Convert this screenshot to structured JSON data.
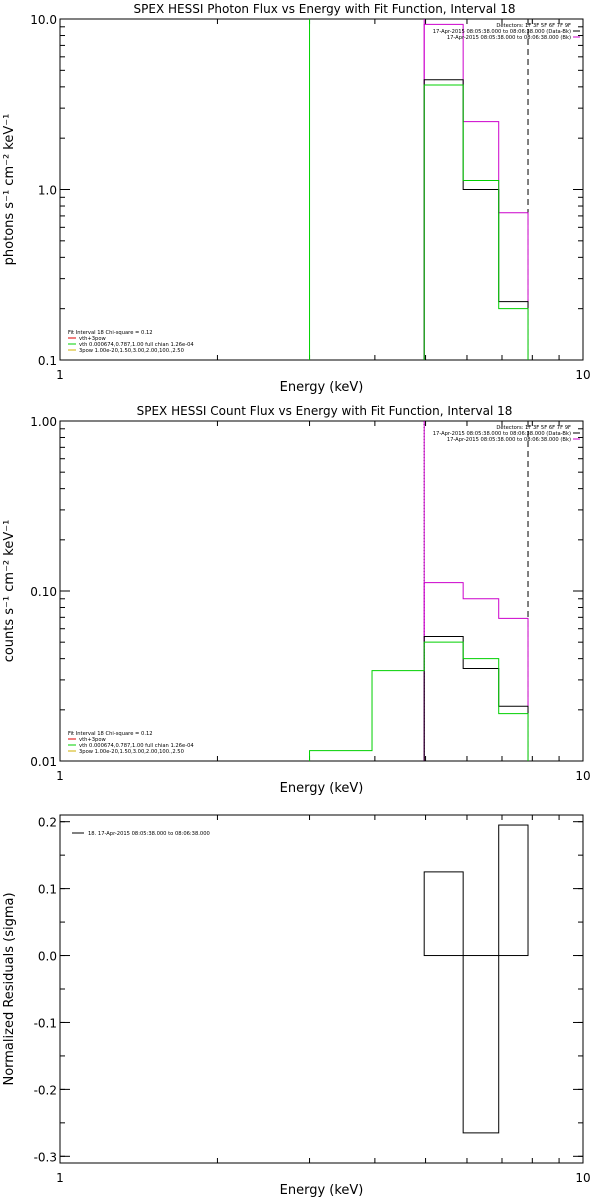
{
  "colors": {
    "black": "#000000",
    "green": "#00d000",
    "magenta": "#cc00cc",
    "red": "#e00000",
    "yellow": "#d2b000"
  },
  "chart_data": [
    {
      "type": "line",
      "title": "SPEX HESSI Photon Flux vs Energy with Fit Function, Interval 18",
      "xlabel": "Energy (keV)",
      "ylabel": "photons s⁻¹ cm⁻² keV⁻¹",
      "xscale": "log",
      "yscale": "log",
      "xlim": [
        1,
        10
      ],
      "ylim": [
        0.1,
        10
      ],
      "xticks": [
        {
          "v": 1,
          "label": "1"
        },
        {
          "v": 10,
          "label": "10"
        }
      ],
      "yticks": [
        {
          "v": 0.1,
          "label": "0.1"
        },
        {
          "v": 1,
          "label": "1.0"
        },
        {
          "v": 10,
          "label": "10.0"
        }
      ],
      "vlines": [
        {
          "x": 3.0,
          "color": "green",
          "style": "solid"
        },
        {
          "x": 4.97,
          "color": "magenta",
          "style": "solid"
        },
        {
          "x": 7.85,
          "color": "black",
          "style": "dashed"
        }
      ],
      "series": [
        {
          "color": "magenta",
          "edges": [
            4.97,
            5.9,
            6.9,
            7.85
          ],
          "values": [
            9.3,
            2.5,
            0.73
          ]
        },
        {
          "color": "black",
          "edges": [
            4.97,
            5.9,
            6.9,
            7.85
          ],
          "values": [
            4.4,
            1.0,
            0.22
          ]
        },
        {
          "color": "green",
          "edges": [
            4.97,
            5.9,
            6.9,
            7.85
          ],
          "values": [
            4.1,
            1.13,
            0.2
          ]
        }
      ],
      "legend_right": [
        {
          "text": "Detectors: 1F 3F 5F 6F 7F 9F",
          "color": ""
        },
        {
          "text": "17-Apr-2015 08:05:38.000 to 08:06:38.000 (Data-Bk)",
          "color": "black"
        },
        {
          "text": "17-Apr-2015 08:05:38.000 to 08:06:38.000 (Bk)",
          "color": "magenta"
        }
      ],
      "legend_left": [
        {
          "text": "Fit Interval 18   Chi-square = 0.12",
          "color": ""
        },
        {
          "text": "vth+3pow",
          "color": "red"
        },
        {
          "text": "vth 0.000674,0.787,1.00  full chian 1.26e-04",
          "color": "green"
        },
        {
          "text": "3pow 1.00e-20,1.50,3.00,2.00,100.,2.50",
          "color": "yellow"
        }
      ]
    },
    {
      "type": "line",
      "title": "SPEX HESSI Count Flux vs Energy with Fit Function, Interval 18",
      "xlabel": "Energy (keV)",
      "ylabel": "counts s⁻¹ cm⁻² keV⁻¹",
      "xscale": "log",
      "yscale": "log",
      "xlim": [
        1,
        10
      ],
      "ylim": [
        0.01,
        1
      ],
      "xticks": [
        {
          "v": 1,
          "label": "1"
        },
        {
          "v": 10,
          "label": "10"
        }
      ],
      "yticks": [
        {
          "v": 0.01,
          "label": "0.01"
        },
        {
          "v": 0.1,
          "label": "0.10"
        },
        {
          "v": 1,
          "label": "1.00"
        }
      ],
      "vlines": [
        {
          "x": 4.97,
          "color": "black",
          "style": "dotted"
        },
        {
          "x": 4.97,
          "color": "magenta",
          "style": "solid"
        },
        {
          "x": 7.85,
          "color": "black",
          "style": "dashed"
        }
      ],
      "series": [
        {
          "color": "magenta",
          "edges": [
            4.97,
            5.9,
            6.9,
            7.85
          ],
          "values": [
            0.112,
            0.09,
            0.069
          ]
        },
        {
          "color": "black",
          "edges": [
            4.97,
            5.9,
            6.9,
            7.85
          ],
          "values": [
            0.054,
            0.035,
            0.021
          ]
        },
        {
          "color": "green",
          "edges": [
            3.0,
            3.95,
            4.97,
            5.9,
            6.9,
            7.85
          ],
          "values": [
            0.0115,
            0.034,
            0.05,
            0.04,
            0.019
          ]
        }
      ],
      "legend_right": [
        {
          "text": "Detectors: 1F 3F 5F 6F 7F 9F",
          "color": ""
        },
        {
          "text": "17-Apr-2015 08:05:38.000 to 08:06:38.000 (Data-Bk)",
          "color": "black"
        },
        {
          "text": "17-Apr-2015 08:05:38.000 to 08:06:38.000 (Bk)",
          "color": "magenta"
        }
      ],
      "legend_left": [
        {
          "text": "Fit Interval 18   Chi-square = 0.12",
          "color": ""
        },
        {
          "text": "vth+3pow",
          "color": "red"
        },
        {
          "text": "vth 0.000674,0.787,1.00  full chian 1.26e-04",
          "color": "green"
        },
        {
          "text": "3pow 1.00e-20,1.50,3.00,2.00,100.,2.50",
          "color": "yellow"
        }
      ]
    },
    {
      "type": "line",
      "title": "",
      "xlabel": "Energy (keV)",
      "ylabel": "Normalized Residuals (sigma)",
      "xscale": "log",
      "yscale": "linear",
      "xlim": [
        1,
        10
      ],
      "ylim": [
        -0.31,
        0.21
      ],
      "xticks": [
        {
          "v": 1,
          "label": "1"
        },
        {
          "v": 10,
          "label": "10"
        }
      ],
      "yticks": [
        {
          "v": 0.2,
          "label": "0.2"
        },
        {
          "v": 0.1,
          "label": "0.1"
        },
        {
          "v": 0.0,
          "label": "0.0"
        },
        {
          "v": -0.1,
          "label": "-0.1"
        },
        {
          "v": -0.2,
          "label": "-0.2"
        },
        {
          "v": -0.3,
          "label": "-0.3"
        }
      ],
      "vlines": [],
      "bars": [
        {
          "x0": 4.97,
          "x1": 5.9,
          "value": 0.125
        },
        {
          "x0": 5.9,
          "x1": 6.9,
          "value": -0.265
        },
        {
          "x0": 6.9,
          "x1": 7.85,
          "value": 0.195
        }
      ],
      "series": [],
      "legend_right": [],
      "legend_left": [],
      "legend_top": [
        {
          "text": "18. 17-Apr-2015 08:05:38.000 to 08:06:38.000",
          "color": "black"
        }
      ]
    }
  ]
}
